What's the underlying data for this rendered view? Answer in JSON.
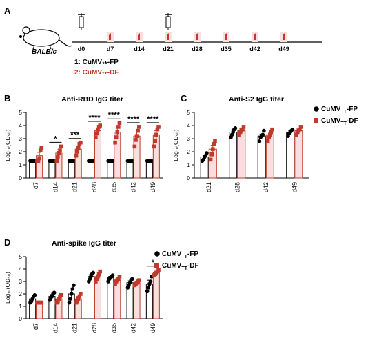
{
  "panels": {
    "a": "A",
    "b": "B",
    "c": "C",
    "d": "D"
  },
  "schedule": {
    "mouse_label": "BALB/c",
    "days": [
      "d0",
      "d7",
      "d14",
      "d21",
      "d28",
      "d35",
      "d42",
      "d49"
    ],
    "injection_days": [
      "d0",
      "d21"
    ],
    "group1": "1: CuMVₜₜ-FP",
    "group2": "2: CuMVₜₜ-DF"
  },
  "legend": {
    "fp": "CuMV",
    "df": "CuMV",
    "sub": "TT",
    "fp_suffix": "-FP",
    "df_suffix": "-DF"
  },
  "colors": {
    "fp": "#000000",
    "df": "#c0392b",
    "df_fill": "#f8dede",
    "group2_text": "#c0392b"
  },
  "chart_data": [
    {
      "type": "bar",
      "title": "Anti-RBD IgG titer",
      "ylabel": "Log₁₀(OD₅₀)",
      "ylim": [
        0,
        5
      ],
      "yticks": [
        0,
        1,
        2,
        3,
        4,
        5
      ],
      "categories": [
        "d7",
        "d14",
        "d21",
        "d28",
        "d35",
        "d42",
        "d49"
      ],
      "series": [
        {
          "name": "CuMVₜₜ-FP",
          "values": [
            1.3,
            1.3,
            1.3,
            1.3,
            1.3,
            1.3,
            1.3
          ],
          "sem": [
            0,
            0,
            0,
            0,
            0,
            0,
            0
          ],
          "points": [
            [
              1.3,
              1.3,
              1.3,
              1.3,
              1.3
            ],
            [
              1.3,
              1.3,
              1.3,
              1.3,
              1.3
            ],
            [
              1.3,
              1.3,
              1.3,
              1.3,
              1.3
            ],
            [
              1.3,
              1.3,
              1.3,
              1.3,
              1.3
            ],
            [
              1.3,
              1.3,
              1.3,
              1.3,
              1.3
            ],
            [
              1.3,
              1.3,
              1.3,
              1.3,
              1.3
            ],
            [
              1.3,
              1.3,
              1.3,
              1.3,
              1.3
            ]
          ]
        },
        {
          "name": "CuMVₜₜ-DF",
          "values": [
            1.7,
            1.9,
            2.2,
            3.6,
            3.5,
            3.2,
            3.3
          ],
          "sem": [
            0.25,
            0.25,
            0.25,
            0.2,
            0.3,
            0.3,
            0.3
          ],
          "points": [
            [
              1.3,
              1.3,
              1.5,
              2.1,
              2.3
            ],
            [
              1.3,
              1.6,
              1.9,
              2.1,
              2.4
            ],
            [
              1.7,
              2.0,
              2.3,
              2.6,
              2.7
            ],
            [
              3.1,
              3.4,
              3.7,
              3.9,
              4.0
            ],
            [
              2.7,
              3.1,
              3.5,
              3.9,
              4.2
            ],
            [
              2.4,
              2.9,
              3.2,
              3.6,
              3.9
            ],
            [
              2.4,
              2.8,
              3.3,
              3.7,
              3.9
            ]
          ]
        }
      ],
      "significance": [
        "",
        "*",
        "***",
        "****",
        "****",
        "****",
        "****"
      ]
    },
    {
      "type": "bar",
      "title": "Anti-S2 IgG titer",
      "ylabel": "Log₁₀(OD₅₀)",
      "ylim": [
        0,
        5
      ],
      "yticks": [
        0,
        1,
        2,
        3,
        4,
        5
      ],
      "categories": [
        "d21",
        "d28",
        "d42",
        "d49"
      ],
      "series": [
        {
          "name": "CuMVₜₜ-FP",
          "values": [
            1.6,
            3.5,
            3.2,
            3.5
          ],
          "sem": [
            0.15,
            0.15,
            0.15,
            0.12
          ],
          "points": [
            [
              1.3,
              1.4,
              1.6,
              1.7,
              1.9
            ],
            [
              3.1,
              3.3,
              3.5,
              3.7,
              3.8
            ],
            [
              2.8,
              3.1,
              3.2,
              3.3,
              3.6
            ],
            [
              3.2,
              3.4,
              3.5,
              3.6,
              3.7
            ]
          ]
        },
        {
          "name": "CuMVₜₜ-DF",
          "values": [
            2.2,
            3.6,
            3.3,
            3.6
          ],
          "sem": [
            0.3,
            0.15,
            0.2,
            0.15
          ],
          "points": [
            [
              1.4,
              1.8,
              2.2,
              2.6,
              2.8
            ],
            [
              3.3,
              3.5,
              3.6,
              3.7,
              3.9
            ],
            [
              2.8,
              3.1,
              3.3,
              3.5,
              3.7
            ],
            [
              3.3,
              3.5,
              3.6,
              3.7,
              3.9
            ]
          ]
        }
      ]
    },
    {
      "type": "bar",
      "title": "Anti-spike IgG titer",
      "ylabel": "Log₁₀(OD₅₀)",
      "ylim": [
        0,
        5
      ],
      "yticks": [
        0,
        1,
        2,
        3,
        4,
        5
      ],
      "categories": [
        "d7",
        "d14",
        "d21",
        "d28",
        "d35",
        "d42",
        "d49"
      ],
      "series": [
        {
          "name": "CuMVₜₜ-FP",
          "values": [
            1.6,
            1.8,
            2.0,
            3.4,
            3.3,
            2.9,
            2.8
          ],
          "sem": [
            0.15,
            0.15,
            0.3,
            0.15,
            0.12,
            0.15,
            0.3
          ],
          "points": [
            [
              1.3,
              1.4,
              1.6,
              1.8,
              1.9
            ],
            [
              1.5,
              1.7,
              1.8,
              2.0,
              2.1
            ],
            [
              1.3,
              1.6,
              2.0,
              2.4,
              2.7
            ],
            [
              3.0,
              3.2,
              3.4,
              3.6,
              3.7
            ],
            [
              3.0,
              3.2,
              3.3,
              3.4,
              3.5
            ],
            [
              2.5,
              2.7,
              2.9,
              3.1,
              3.2
            ],
            [
              2.2,
              2.5,
              2.8,
              3.0,
              3.4
            ]
          ]
        },
        {
          "name": "CuMVₜₜ-DF",
          "values": [
            1.3,
            1.6,
            1.6,
            3.4,
            3.1,
            2.9,
            3.7
          ],
          "sem": [
            0,
            0.15,
            0.2,
            0.15,
            0.12,
            0.1,
            0.1
          ],
          "points": [
            [
              1.3,
              1.3,
              1.3,
              1.3,
              1.3
            ],
            [
              1.3,
              1.4,
              1.6,
              1.8,
              1.9
            ],
            [
              1.3,
              1.4,
              1.6,
              1.8,
              2.0
            ],
            [
              3.0,
              3.2,
              3.4,
              3.6,
              3.8
            ],
            [
              2.8,
              3.0,
              3.1,
              3.2,
              3.4
            ],
            [
              2.7,
              2.8,
              2.9,
              3.0,
              3.1
            ],
            [
              3.5,
              3.6,
              3.7,
              3.8,
              3.9
            ]
          ]
        }
      ],
      "significance": [
        "",
        "",
        "",
        "",
        "",
        "",
        "*"
      ]
    }
  ]
}
